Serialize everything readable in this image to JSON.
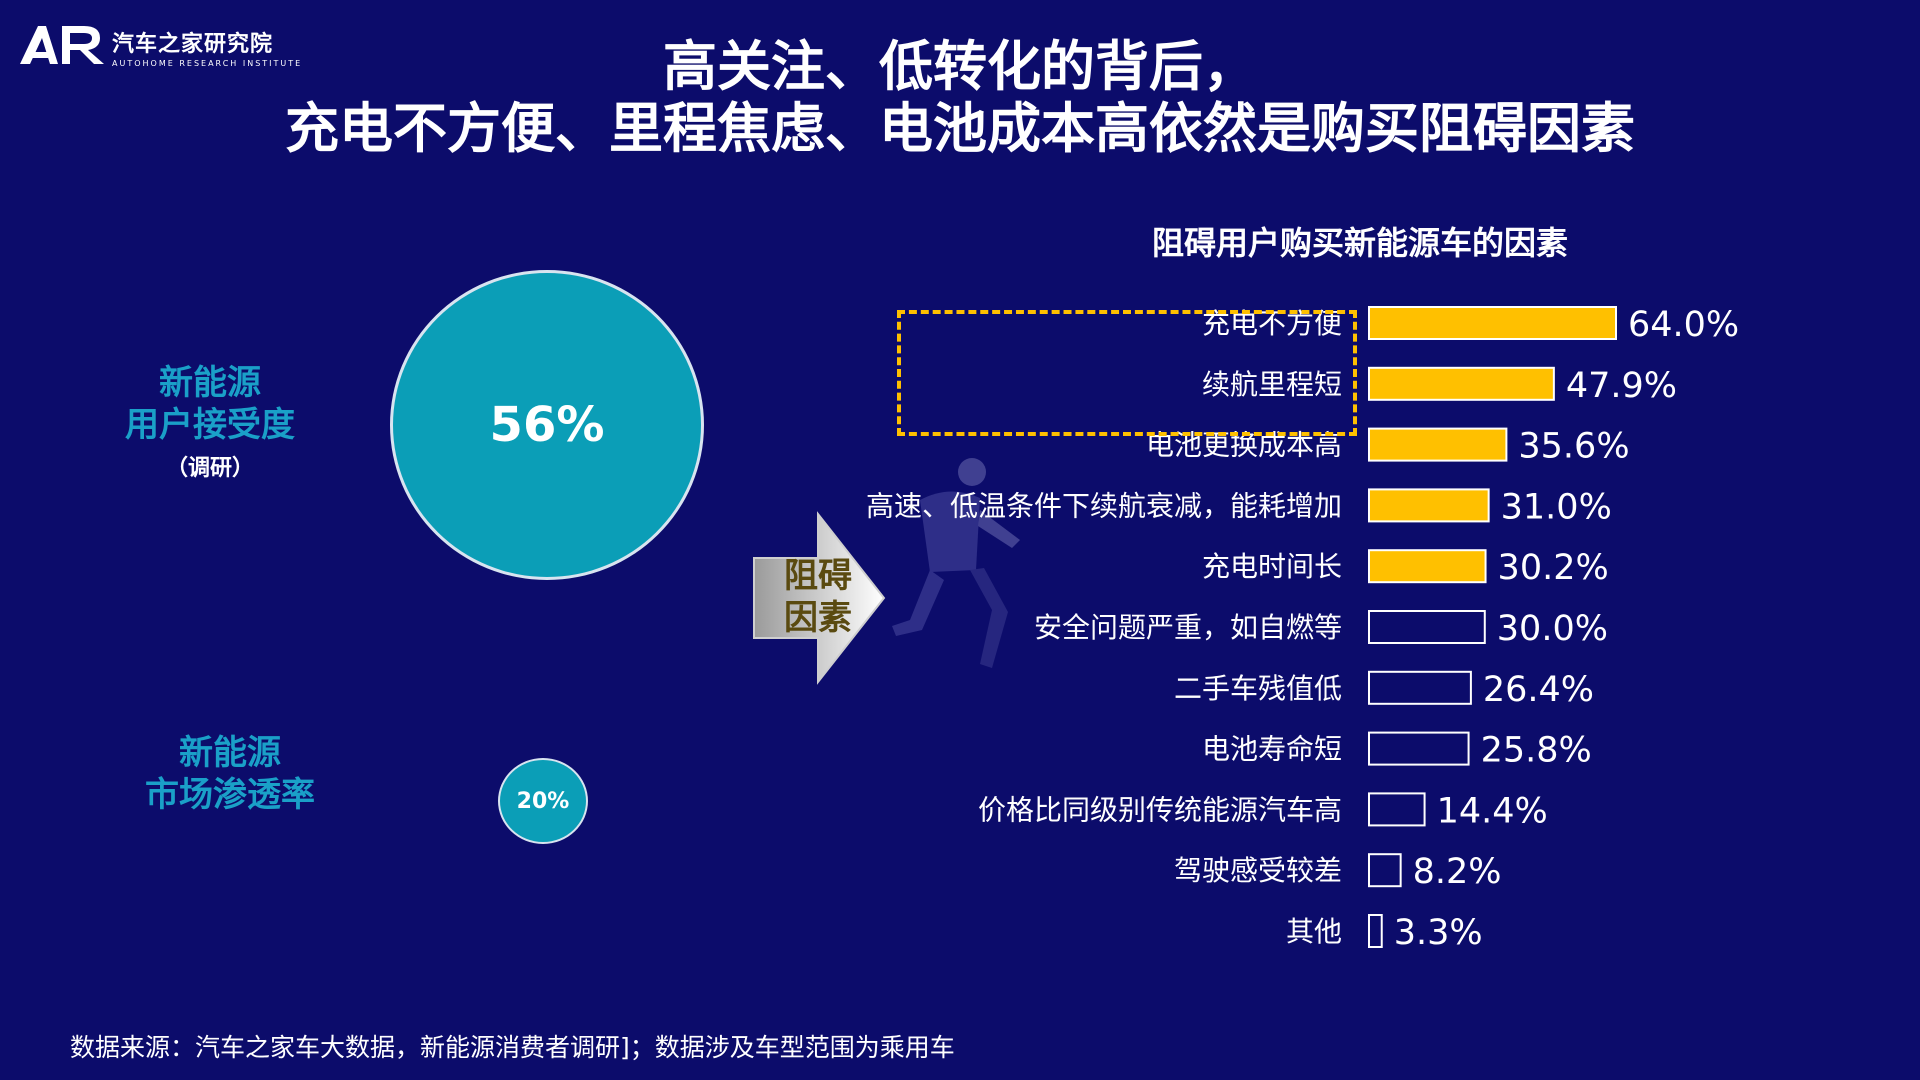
{
  "logo": {
    "mark": "AR",
    "name": "汽车之家研究院",
    "subtitle": "AUTOHOME RESEARCH INSTITUTE"
  },
  "title": {
    "line1": "高关注、低转化的背后，",
    "line2": "充电不方便、里程焦虑、电池成本高依然是购买阻碍因素"
  },
  "acceptance": {
    "label_line1": "新能源",
    "label_line2": "用户接受度",
    "note": "（调研）",
    "value": "56%"
  },
  "penetration": {
    "label_line1": "新能源",
    "label_line2": "市场渗透率",
    "value": "20%"
  },
  "arrow": {
    "line1": "阻碍",
    "line2": "因素"
  },
  "colors": {
    "background": "#0c0c6b",
    "bubble": "#0b9eb7",
    "highlight": "#ffc000",
    "bar_outline": "#ffffff"
  },
  "chart_data": {
    "type": "bar",
    "orientation": "horizontal",
    "title": "阻碍用户购买新能源车的因素",
    "categories": [
      "充电不方便",
      "续航里程短",
      "电池更换成本高",
      "高速、低温条件下续航衰减，能耗增加",
      "充电时间长",
      "安全问题严重，如自燃等",
      "二手车残值低",
      "电池寿命短",
      "价格比同级别传统能源汽车高",
      "驾驶感受较差",
      "其他"
    ],
    "values": [
      64.0,
      47.9,
      35.6,
      31.0,
      30.2,
      30.0,
      26.4,
      25.8,
      14.4,
      8.2,
      3.3
    ],
    "labels": [
      "64.0%",
      "47.9%",
      "35.6%",
      "31.0%",
      "30.2%",
      "30.0%",
      "26.4%",
      "25.8%",
      "14.4%",
      "8.2%",
      "3.3%"
    ],
    "highlighted": [
      true,
      true,
      true,
      true,
      true,
      false,
      false,
      false,
      false,
      false,
      false
    ],
    "unit": "%"
  },
  "footer": {
    "source": "数据来源：汽车之家车大数据，新能源消费者调研]；数据涉及车型范围为乘用车"
  }
}
